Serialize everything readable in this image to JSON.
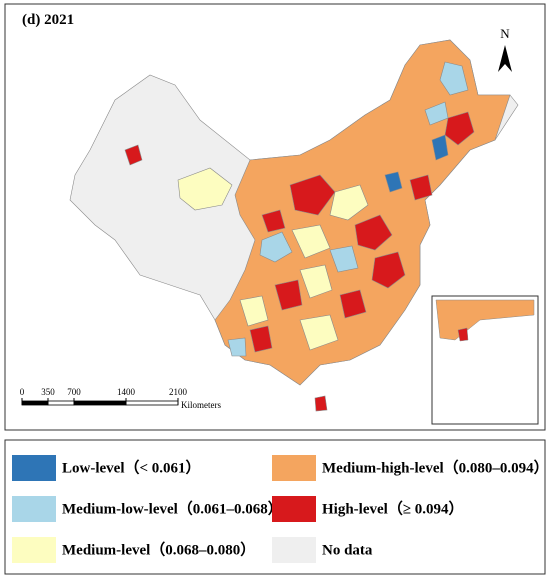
{
  "title": "(d) 2021",
  "north": "N",
  "scale": {
    "ticks": [
      0,
      350,
      700,
      1400,
      2100
    ],
    "unit": "Kilometers"
  },
  "legend": [
    {
      "label": "Low-level（< 0.061）",
      "color": "#2e75b6"
    },
    {
      "label": "Medium-low-level（0.061–0.068）",
      "color": "#a9d6e8"
    },
    {
      "label": "Medium-level（0.068–0.080）",
      "color": "#fdfdc0"
    },
    {
      "label": "Medium-high-level（0.080–0.094）",
      "color": "#f4a55f"
    },
    {
      "label": "High-level（≥ 0.094）",
      "color": "#d7191c"
    },
    {
      "label": "No data",
      "color": "#efefef"
    }
  ]
}
